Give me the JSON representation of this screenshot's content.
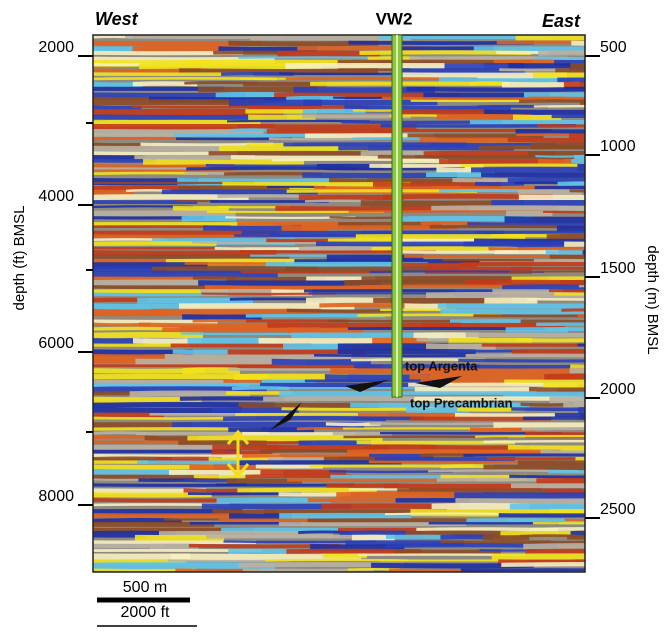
{
  "header": {
    "west": "West",
    "well": "VW2",
    "east": "East"
  },
  "left_axis": {
    "label": "depth (ft) BMSL",
    "ticks": [
      2000,
      4000,
      6000,
      8000
    ]
  },
  "right_axis": {
    "label": "depth (m) BMSL",
    "ticks": [
      500,
      1000,
      1500,
      2000,
      2500
    ]
  },
  "annotations": {
    "top_argenta": "top Argenta",
    "top_precambrian": "top Precambrian"
  },
  "scale_bar": {
    "metric": "500 m",
    "imperial": "2000 ft"
  }
}
